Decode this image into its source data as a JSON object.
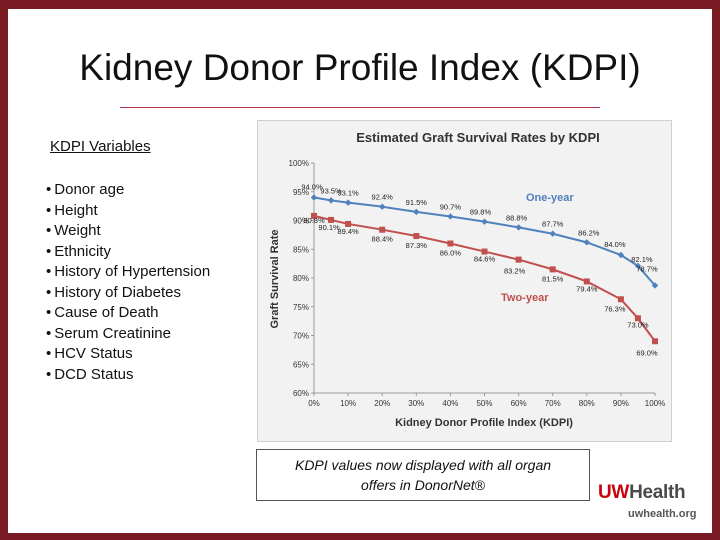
{
  "slide": {
    "title": "Kidney Donor Profile Index (KDPI)",
    "variables_heading": "KDPI Variables",
    "variables": [
      "Donor age",
      "Height",
      "Weight",
      "Ethnicity",
      "History of Hypertension",
      "History of Diabetes",
      "Cause of Death",
      "Serum Creatinine",
      "HCV Status",
      "DCD Status"
    ],
    "caption": "KDPI values now displayed with all organ offers in DonorNet®",
    "logo": {
      "uw": "UW",
      "health": "Health",
      "url": "uwhealth.org"
    }
  },
  "colors": {
    "one_year": "#4f81bd",
    "two_year": "#c0504d",
    "brand": "#c5050c",
    "frame": "#7a1a22"
  },
  "chart_data": {
    "type": "line",
    "title": "Estimated Graft Survival Rates by KDPI",
    "xlabel": "Kidney Donor Profile Index (KDPI)",
    "ylabel": "Graft Survival Rate",
    "x": [
      0,
      10,
      20,
      30,
      40,
      50,
      60,
      70,
      80,
      90,
      100
    ],
    "x_tick_labels": [
      "0%",
      "10%",
      "20%",
      "30%",
      "40%",
      "50%",
      "60%",
      "70%",
      "80%",
      "90%",
      "100%"
    ],
    "y_tick_labels": [
      "60%",
      "65%",
      "70%",
      "75%",
      "80%",
      "85%",
      "90%",
      "95%",
      "100%"
    ],
    "ylim": [
      60,
      100
    ],
    "series": [
      {
        "name": "One-year",
        "color": "#4f81bd",
        "values": [
          94.0,
          93.5,
          93.1,
          92.4,
          91.5,
          90.7,
          89.8,
          88.8,
          87.7,
          86.2,
          84.0,
          82.1,
          78.7
        ],
        "x": [
          0,
          5,
          10,
          20,
          30,
          40,
          50,
          60,
          70,
          80,
          90,
          95,
          100
        ],
        "labels": [
          "94.0%",
          "93.5%",
          "93.1%",
          "92.4%",
          "91.5%",
          "90.7%",
          "89.8%",
          "88.8%",
          "87.7%",
          "86.2%",
          "84.0%",
          "82.1%",
          "78.7%"
        ]
      },
      {
        "name": "Two-year",
        "color": "#c0504d",
        "values": [
          90.8,
          90.1,
          89.4,
          88.4,
          87.3,
          86.0,
          84.6,
          83.2,
          81.5,
          79.4,
          76.3,
          73.0,
          69.0
        ],
        "x": [
          0,
          5,
          10,
          20,
          30,
          40,
          50,
          60,
          70,
          80,
          90,
          95,
          100
        ],
        "labels": [
          "90.8%",
          "90.1%",
          "89.4%",
          "88.4%",
          "87.3%",
          "86.0%",
          "84.6%",
          "83.2%",
          "81.5%",
          "79.4%",
          "76.3%",
          "73.0%",
          "69.0%"
        ]
      }
    ],
    "legend_labels": {
      "one_year": "One-year",
      "two_year": "Two-year"
    }
  }
}
